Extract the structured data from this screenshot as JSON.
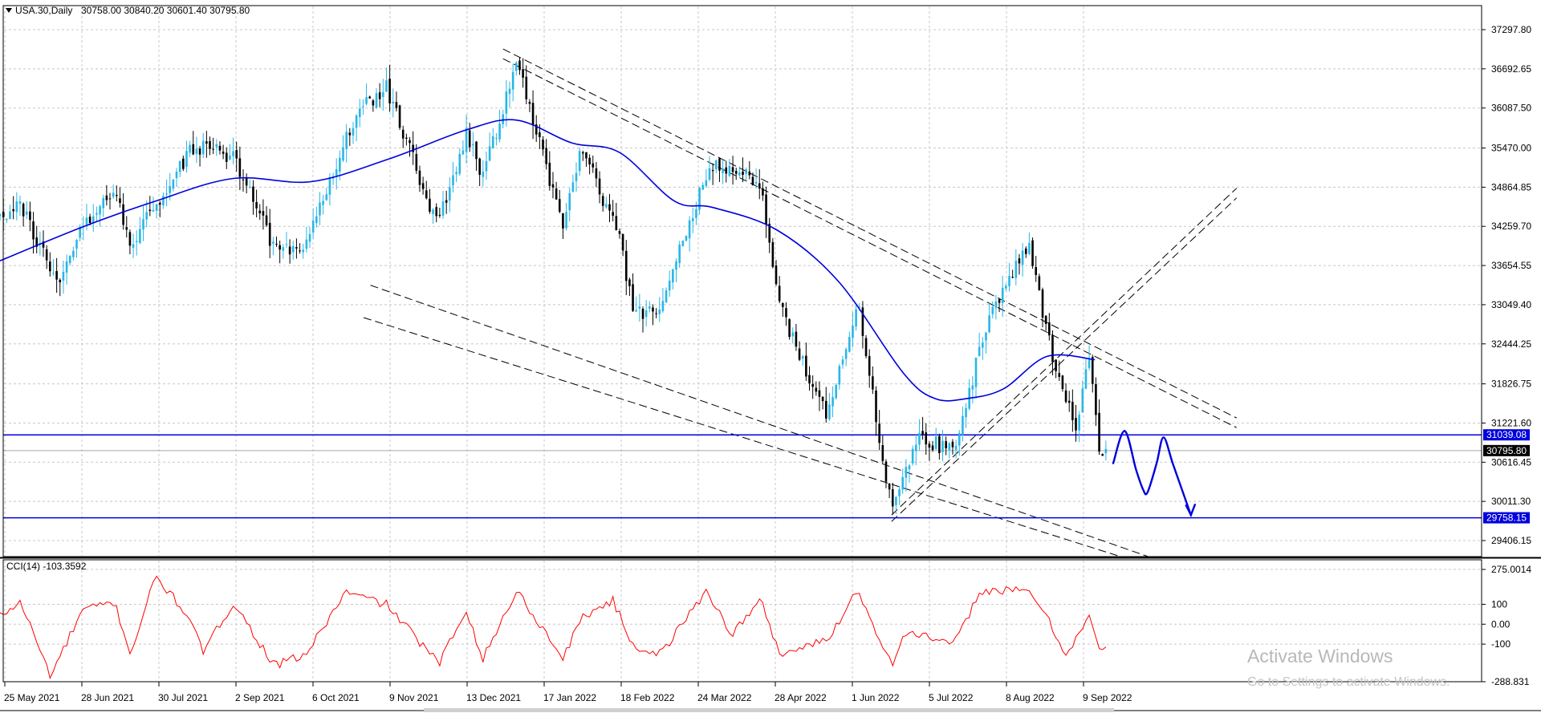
{
  "main_chart": {
    "symbol_label": "USA.30,Daily",
    "ohlc_readout": "30758.00 30840.20 30601.40 30795.80"
  },
  "indicator": {
    "label": "CCI(14) -103.3592",
    "ticks": [
      "275.0014",
      "100",
      "0.00",
      "-100",
      "-288.831"
    ]
  },
  "price_axis_ticks": [
    "37297.80",
    "36692.65",
    "36087.50",
    "35470.00",
    "34864.85",
    "34259.70",
    "33654.55",
    "33049.40",
    "32444.25",
    "31826.75",
    "31221.60",
    "30616.45",
    "30011.30",
    "29406.15"
  ],
  "price_tags": {
    "resistance": "31039.08",
    "current": "30795.80",
    "support": "29758.15"
  },
  "date_axis_labels": [
    "25 May 2021",
    "28 Jun 2021",
    "30 Jul 2021",
    "2 Sep 2021",
    "6 Oct 2021",
    "9 Nov 2021",
    "13 Dec 2021",
    "17 Jan 2022",
    "18 Feb 2022",
    "24 Mar 2022",
    "28 Apr 2022",
    "1 Jun 2022",
    "5 Jul 2022",
    "8 Aug 2022",
    "9 Sep 2022"
  ],
  "watermark": {
    "line1": "Activate Windows",
    "line2": "Go to Settings to activate Windows."
  },
  "colors": {
    "bull": "#29b6e8",
    "bear": "#000000",
    "ma": "#0000dd",
    "level": "#0000dd",
    "cci": "#ff0000",
    "grid": "#c8c8c8",
    "tag_bg": "#0000dd",
    "cur_tag_bg": "#000000"
  },
  "chart_data": [
    {
      "type": "candlestick",
      "title": "USA.30,Daily",
      "ylim": [
        29100,
        37600
      ],
      "levels": [
        31039.08,
        29758.15
      ],
      "last_price": 30795.8,
      "moving_average": [
        {
          "date": "2021-05-21",
          "value": 33700
        },
        {
          "date": "2021-06-28",
          "value": 34250
        },
        {
          "date": "2021-07-30",
          "value": 34650
        },
        {
          "date": "2021-09-02",
          "value": 35000
        },
        {
          "date": "2021-10-06",
          "value": 34950
        },
        {
          "date": "2021-11-09",
          "value": 35300
        },
        {
          "date": "2021-12-13",
          "value": 35750
        },
        {
          "date": "2022-01-04",
          "value": 35900
        },
        {
          "date": "2022-01-28",
          "value": 35550
        },
        {
          "date": "2022-02-18",
          "value": 35400
        },
        {
          "date": "2022-03-14",
          "value": 34650
        },
        {
          "date": "2022-03-31",
          "value": 34550
        },
        {
          "date": "2022-04-28",
          "value": 34200
        },
        {
          "date": "2022-05-25",
          "value": 33400
        },
        {
          "date": "2022-06-22",
          "value": 32000
        },
        {
          "date": "2022-07-06",
          "value": 31600
        },
        {
          "date": "2022-07-20",
          "value": 31600
        },
        {
          "date": "2022-08-05",
          "value": 31750
        },
        {
          "date": "2022-08-24",
          "value": 32250
        },
        {
          "date": "2022-09-14",
          "value": 32200
        }
      ],
      "price_path": [
        {
          "date": "2021-05-20",
          "value": 34300
        },
        {
          "date": "2021-06-01",
          "value": 34600
        },
        {
          "date": "2021-06-18",
          "value": 33300
        },
        {
          "date": "2021-06-28",
          "value": 34300
        },
        {
          "date": "2021-07-12",
          "value": 34900
        },
        {
          "date": "2021-07-19",
          "value": 34000
        },
        {
          "date": "2021-08-16",
          "value": 35500
        },
        {
          "date": "2021-09-02",
          "value": 35350
        },
        {
          "date": "2021-09-20",
          "value": 33900
        },
        {
          "date": "2021-10-04",
          "value": 34000
        },
        {
          "date": "2021-10-26",
          "value": 36000
        },
        {
          "date": "2021-11-08",
          "value": 36400
        },
        {
          "date": "2021-11-30",
          "value": 34300
        },
        {
          "date": "2021-12-13",
          "value": 35700
        },
        {
          "date": "2021-12-20",
          "value": 35000
        },
        {
          "date": "2022-01-04",
          "value": 36800
        },
        {
          "date": "2022-01-24",
          "value": 34300
        },
        {
          "date": "2022-02-01",
          "value": 35500
        },
        {
          "date": "2022-02-18",
          "value": 34100
        },
        {
          "date": "2022-02-24",
          "value": 32900
        },
        {
          "date": "2022-03-08",
          "value": 33000
        },
        {
          "date": "2022-03-29",
          "value": 35200
        },
        {
          "date": "2022-04-20",
          "value": 35000
        },
        {
          "date": "2022-04-29",
          "value": 33000
        },
        {
          "date": "2022-05-20",
          "value": 31300
        },
        {
          "date": "2022-06-02",
          "value": 33100
        },
        {
          "date": "2022-06-17",
          "value": 29900
        },
        {
          "date": "2022-06-28",
          "value": 31000
        },
        {
          "date": "2022-07-14",
          "value": 30800
        },
        {
          "date": "2022-07-29",
          "value": 32800
        },
        {
          "date": "2022-08-16",
          "value": 34000
        },
        {
          "date": "2022-08-26",
          "value": 32300
        },
        {
          "date": "2022-09-06",
          "value": 31200
        },
        {
          "date": "2022-09-12",
          "value": 32300
        },
        {
          "date": "2022-09-16",
          "value": 30800
        },
        {
          "date": "2022-09-20",
          "value": 30795.8
        }
      ],
      "trendlines": [
        {
          "from": {
            "date": "2021-12-29",
            "value": 37000
          },
          "to": {
            "date": "2022-11-15",
            "value": 31300
          }
        },
        {
          "from": {
            "date": "2021-12-29",
            "value": 36850
          },
          "to": {
            "date": "2022-11-15",
            "value": 31150
          }
        },
        {
          "from": {
            "date": "2021-11-01",
            "value": 33350
          },
          "to": {
            "date": "2022-10-08",
            "value": 29150
          }
        },
        {
          "from": {
            "date": "2021-10-29",
            "value": 32850
          },
          "to": {
            "date": "2022-09-26",
            "value": 29150
          }
        },
        {
          "from": {
            "date": "2022-06-17",
            "value": 29700
          },
          "to": {
            "date": "2022-11-15",
            "value": 34700
          }
        },
        {
          "from": {
            "date": "2022-06-17",
            "value": 29800
          },
          "to": {
            "date": "2022-11-15",
            "value": 34850
          }
        }
      ],
      "projection": [
        {
          "date": "2022-09-22",
          "value": 30600
        },
        {
          "date": "2022-09-27",
          "value": 31100
        },
        {
          "date": "2022-10-02",
          "value": 30500
        },
        {
          "date": "2022-10-05",
          "value": 30200
        },
        {
          "date": "2022-10-07",
          "value": 30150
        },
        {
          "date": "2022-10-11",
          "value": 30600
        },
        {
          "date": "2022-10-14",
          "value": 31000
        },
        {
          "date": "2022-10-18",
          "value": 30600
        },
        {
          "date": "2022-10-23",
          "value": 30100
        },
        {
          "date": "2022-10-26",
          "value": 29800
        }
      ]
    },
    {
      "type": "line",
      "title": "CCI(14) -103.3592",
      "ylim": [
        -288.831,
        275.0014
      ],
      "series": [
        {
          "values": [
            {
              "date": "2021-05-20",
              "value": 20
            },
            {
              "date": "2021-06-01",
              "value": 110
            },
            {
              "date": "2021-06-14",
              "value": -260
            },
            {
              "date": "2021-06-28",
              "value": 70
            },
            {
              "date": "2021-07-12",
              "value": 110
            },
            {
              "date": "2021-07-19",
              "value": -150
            },
            {
              "date": "2021-07-30",
              "value": 240
            },
            {
              "date": "2021-08-12",
              "value": 60
            },
            {
              "date": "2021-08-20",
              "value": -140
            },
            {
              "date": "2021-09-02",
              "value": 110
            },
            {
              "date": "2021-09-20",
              "value": -210
            },
            {
              "date": "2021-10-04",
              "value": -150
            },
            {
              "date": "2021-10-21",
              "value": 160
            },
            {
              "date": "2021-11-08",
              "value": 100
            },
            {
              "date": "2021-12-01",
              "value": -200
            },
            {
              "date": "2021-12-13",
              "value": 80
            },
            {
              "date": "2021-12-20",
              "value": -180
            },
            {
              "date": "2022-01-04",
              "value": 170
            },
            {
              "date": "2022-01-24",
              "value": -170
            },
            {
              "date": "2022-02-02",
              "value": 40
            },
            {
              "date": "2022-02-15",
              "value": 120
            },
            {
              "date": "2022-02-24",
              "value": -110
            },
            {
              "date": "2022-03-08",
              "value": -150
            },
            {
              "date": "2022-03-28",
              "value": 170
            },
            {
              "date": "2022-04-08",
              "value": -50
            },
            {
              "date": "2022-04-21",
              "value": 120
            },
            {
              "date": "2022-04-29",
              "value": -150
            },
            {
              "date": "2022-05-20",
              "value": -80
            },
            {
              "date": "2022-06-02",
              "value": 175
            },
            {
              "date": "2022-06-17",
              "value": -200
            },
            {
              "date": "2022-06-24",
              "value": -30
            },
            {
              "date": "2022-07-14",
              "value": -110
            },
            {
              "date": "2022-07-26",
              "value": 170
            },
            {
              "date": "2022-08-16",
              "value": 165
            },
            {
              "date": "2022-08-22",
              "value": 80
            },
            {
              "date": "2022-09-01",
              "value": -150
            },
            {
              "date": "2022-09-12",
              "value": 40
            },
            {
              "date": "2022-09-16",
              "value": -140
            },
            {
              "date": "2022-09-20",
              "value": -103.36
            }
          ]
        }
      ]
    }
  ]
}
